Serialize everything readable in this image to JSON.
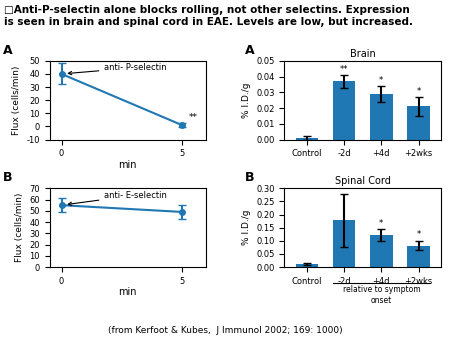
{
  "title": "□Anti-P-selectin alone blocks rolling, not other selectins. Expression\nis seen in brain and spinal cord in EAE. Levels are low, but increased.",
  "caption": "(from Kerfoot & Kubes,  J Immunol 2002; 169: 1000)",
  "chart_data": [
    {
      "type": "line",
      "panel": "A",
      "x": [
        0,
        5
      ],
      "values": [
        40,
        1
      ],
      "yerr": [
        8,
        1.5
      ],
      "xlabel": "min",
      "ylabel": "Flux (cells/min)",
      "xlim": [
        -0.5,
        6
      ],
      "xticks": [
        0,
        5
      ],
      "ylim": [
        -10,
        50
      ],
      "yticks": [
        -10,
        0,
        10,
        20,
        30,
        40,
        50
      ],
      "annotation": "anti- P-selectin",
      "significance": [
        null,
        "**"
      ],
      "marker": "o",
      "line_style": "solid"
    },
    {
      "type": "line",
      "panel": "B",
      "x": [
        0,
        5
      ],
      "values": [
        55,
        49
      ],
      "yerr": [
        6,
        6
      ],
      "xlabel": "min",
      "ylabel": "Flux (cells/min)",
      "xlim": [
        -0.5,
        6
      ],
      "xticks": [
        0,
        5
      ],
      "ylim": [
        0,
        70
      ],
      "yticks": [
        0,
        10,
        20,
        30,
        40,
        50,
        60,
        70
      ],
      "annotation": "anti- E-selectin",
      "marker": "o",
      "line_style": "solid"
    },
    {
      "type": "bar",
      "panel": "A",
      "title": "Brain",
      "categories": [
        "Control",
        "-2d",
        "+4d",
        "+2wks"
      ],
      "values": [
        0.001,
        0.037,
        0.029,
        0.021
      ],
      "yerr": [
        0.001,
        0.004,
        0.005,
        0.006
      ],
      "ylabel": "% I.D./g",
      "ylim": [
        0,
        0.05
      ],
      "yticks": [
        {
          "value": 0,
          "label": "0.00"
        },
        {
          "value": 0.01,
          "label": "0.01"
        },
        {
          "value": 0.02,
          "label": "0.02"
        },
        {
          "value": 0.03,
          "label": "0.03"
        },
        {
          "value": 0.04,
          "label": "0.04"
        },
        {
          "value": 0.05,
          "label": "0.05"
        }
      ],
      "significance": [
        null,
        "**",
        "*",
        "*"
      ]
    },
    {
      "type": "bar",
      "panel": "B",
      "title": "Spinal Cord",
      "categories": [
        "Control",
        "-2d",
        "+4d",
        "+2wks"
      ],
      "values": [
        0.012,
        0.178,
        0.123,
        0.082
      ],
      "yerr": [
        0.004,
        0.1,
        0.022,
        0.018
      ],
      "ylabel": "% I.D./g",
      "ylim": [
        0,
        0.3
      ],
      "yticks": [
        {
          "value": 0,
          "label": "0.00"
        },
        {
          "value": 0.05,
          "label": "0.05"
        },
        {
          "value": 0.1,
          "label": "0.10"
        },
        {
          "value": 0.15,
          "label": "0.15"
        },
        {
          "value": 0.2,
          "label": "0.20"
        },
        {
          "value": 0.25,
          "label": "0.25"
        },
        {
          "value": 0.3,
          "label": "0.30"
        }
      ],
      "significance": [
        null,
        null,
        "*",
        "*"
      ],
      "group_label": {
        "text": "relative to symptom\nonset",
        "categories": [
          "-2d",
          "+4d",
          "+2wks"
        ]
      }
    }
  ]
}
